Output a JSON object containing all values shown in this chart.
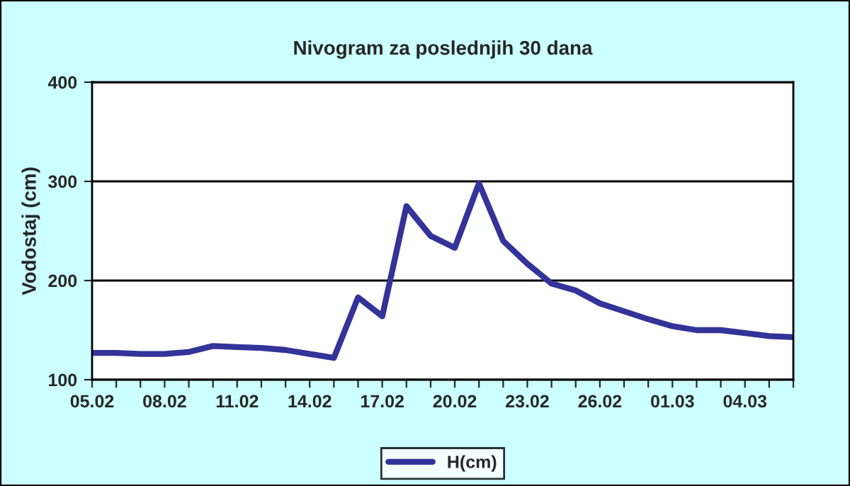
{
  "chart_data": {
    "type": "line",
    "title": "Nivogram za poslednjih 30 dana",
    "ylabel": "Vodostaj (cm)",
    "categories": [
      "05.02",
      null,
      null,
      "08.02",
      null,
      null,
      "11.02",
      null,
      null,
      "14.02",
      null,
      null,
      "17.02",
      null,
      null,
      "20.02",
      null,
      null,
      "23.02",
      null,
      null,
      "26.02",
      null,
      null,
      "01.03",
      null,
      null,
      "04.03",
      null,
      null
    ],
    "series": [
      {
        "name": "H(cm)",
        "color": "#333399",
        "values": [
          127,
          127,
          126,
          126,
          128,
          134,
          133,
          132,
          130,
          126,
          122,
          183,
          164,
          275,
          245,
          233,
          298,
          240,
          217,
          197,
          190,
          177,
          169,
          161,
          154,
          150,
          150,
          147,
          144,
          143
        ]
      }
    ],
    "ylim": [
      100,
      400
    ],
    "yticks": [
      100,
      200,
      300,
      400
    ],
    "grid": "y",
    "legend": "bottom",
    "marker": "none",
    "line_style": "solid"
  }
}
